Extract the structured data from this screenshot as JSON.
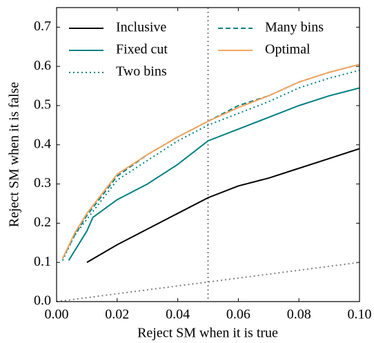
{
  "chart_data": {
    "type": "line",
    "xlabel": "Reject SM when it is true",
    "ylabel": "Reject SM when it is false",
    "xlim": [
      0,
      0.1
    ],
    "ylim": [
      0,
      0.75
    ],
    "xticks": [
      {
        "value": 0,
        "label": "0.00"
      },
      0.02,
      0.04,
      0.06,
      0.08,
      {
        "value": 0.1,
        "label": "0.10"
      }
    ],
    "yticks": [
      {
        "value": 0,
        "label": "0.0"
      },
      0.1,
      0.2,
      0.3,
      0.4,
      0.5,
      0.6,
      0.7
    ],
    "reference_x": 0.05,
    "reference_color": "#808080",
    "diagonal": true,
    "legend": "upper left",
    "series": [
      {
        "name": "Inclusive",
        "color": "#000000",
        "style": "solid",
        "x": [
          0.01,
          0.02,
          0.03,
          0.04,
          0.05,
          0.06,
          0.07,
          0.08,
          0.09,
          0.1
        ],
        "values": [
          0.1,
          0.145,
          0.185,
          0.225,
          0.265,
          0.295,
          0.315,
          0.34,
          0.365,
          0.39
        ]
      },
      {
        "name": "Fixed cut",
        "color": "#008080",
        "style": "solid",
        "x": [
          0.004,
          0.008,
          0.01,
          0.012,
          0.02,
          0.03,
          0.04,
          0.05,
          0.06,
          0.07,
          0.08,
          0.09,
          0.1
        ],
        "values": [
          0.105,
          0.155,
          0.18,
          0.215,
          0.26,
          0.3,
          0.35,
          0.41,
          0.44,
          0.47,
          0.5,
          0.525,
          0.545
        ]
      },
      {
        "name": "Two bins",
        "color": "#008080",
        "style": "dotted",
        "x": [
          0.002,
          0.006,
          0.01,
          0.02,
          0.03,
          0.04,
          0.05,
          0.06,
          0.07,
          0.08,
          0.09,
          0.1
        ],
        "values": [
          0.105,
          0.17,
          0.21,
          0.31,
          0.36,
          0.41,
          0.45,
          0.48,
          0.51,
          0.545,
          0.57,
          0.59
        ]
      },
      {
        "name": "Many bins",
        "color": "#008080",
        "style": "dashed",
        "x": [
          0.002,
          0.006,
          0.01,
          0.02,
          0.03,
          0.04,
          0.05,
          0.06,
          0.07,
          0.08,
          0.09,
          0.1
        ],
        "values": [
          0.11,
          0.17,
          0.22,
          0.32,
          0.375,
          0.42,
          0.46,
          0.5,
          0.525,
          0.56,
          0.585,
          0.605
        ]
      },
      {
        "name": "Optimal",
        "color": "#f4a460",
        "style": "solid",
        "x": [
          0.002,
          0.006,
          0.01,
          0.02,
          0.03,
          0.04,
          0.05,
          0.06,
          0.07,
          0.08,
          0.09,
          0.1
        ],
        "values": [
          0.11,
          0.175,
          0.225,
          0.325,
          0.375,
          0.42,
          0.46,
          0.495,
          0.525,
          0.56,
          0.585,
          0.605
        ]
      }
    ]
  }
}
